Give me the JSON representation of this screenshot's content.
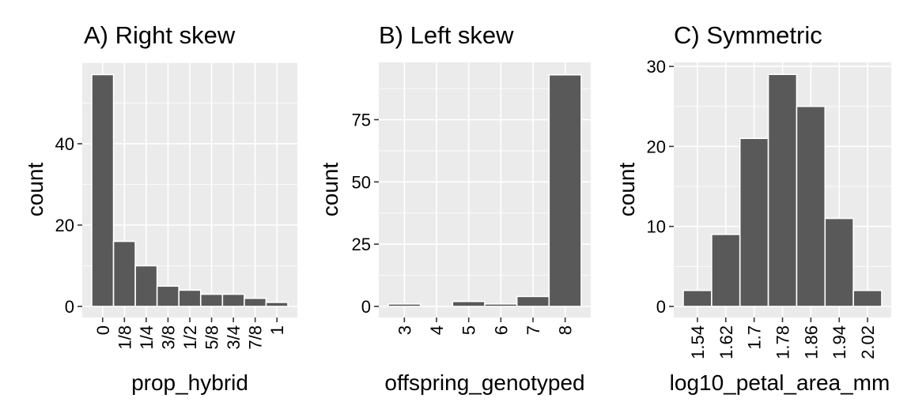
{
  "chart_data": [
    {
      "type": "bar",
      "title": "A) Right skew",
      "xlabel": "prop_hybrid",
      "ylabel": "count",
      "categories": [
        "0",
        "1/8",
        "1/4",
        "3/8",
        "1/2",
        "5/8",
        "3/4",
        "7/8",
        "1"
      ],
      "values": [
        57,
        16,
        10,
        5,
        4,
        3,
        3,
        2,
        1
      ],
      "ylim": [
        0,
        60
      ],
      "yticks": [
        "0",
        "20",
        "40"
      ],
      "grid": true,
      "style": {
        "bar_color": "#595959",
        "panel_bg": "#EBEBEB",
        "grid_color": "#FFFFFF"
      }
    },
    {
      "type": "bar",
      "title": "B) Left skew",
      "xlabel": "offspring_genotyped",
      "ylabel": "count",
      "categories": [
        "3",
        "4",
        "5",
        "6",
        "7",
        "8"
      ],
      "values": [
        1,
        0,
        2,
        1,
        4,
        93
      ],
      "ylim": [
        0,
        98
      ],
      "yticks": [
        "0",
        "25",
        "50",
        "75"
      ],
      "grid": true,
      "style": {
        "bar_color": "#595959",
        "panel_bg": "#EBEBEB",
        "grid_color": "#FFFFFF"
      }
    },
    {
      "type": "bar",
      "title": "C) Symmetric",
      "xlabel": "log10_petal_area_mm",
      "ylabel": "count",
      "categories": [
        "1.54",
        "1.62",
        "1.7",
        "1.78",
        "1.86",
        "1.94",
        "2.02"
      ],
      "values": [
        2,
        9,
        21,
        29,
        25,
        11,
        2
      ],
      "ylim": [
        0,
        30.5
      ],
      "yticks": [
        "0",
        "10",
        "20",
        "30"
      ],
      "grid": true,
      "style": {
        "bar_color": "#595959",
        "panel_bg": "#EBEBEB",
        "grid_color": "#FFFFFF"
      }
    }
  ]
}
